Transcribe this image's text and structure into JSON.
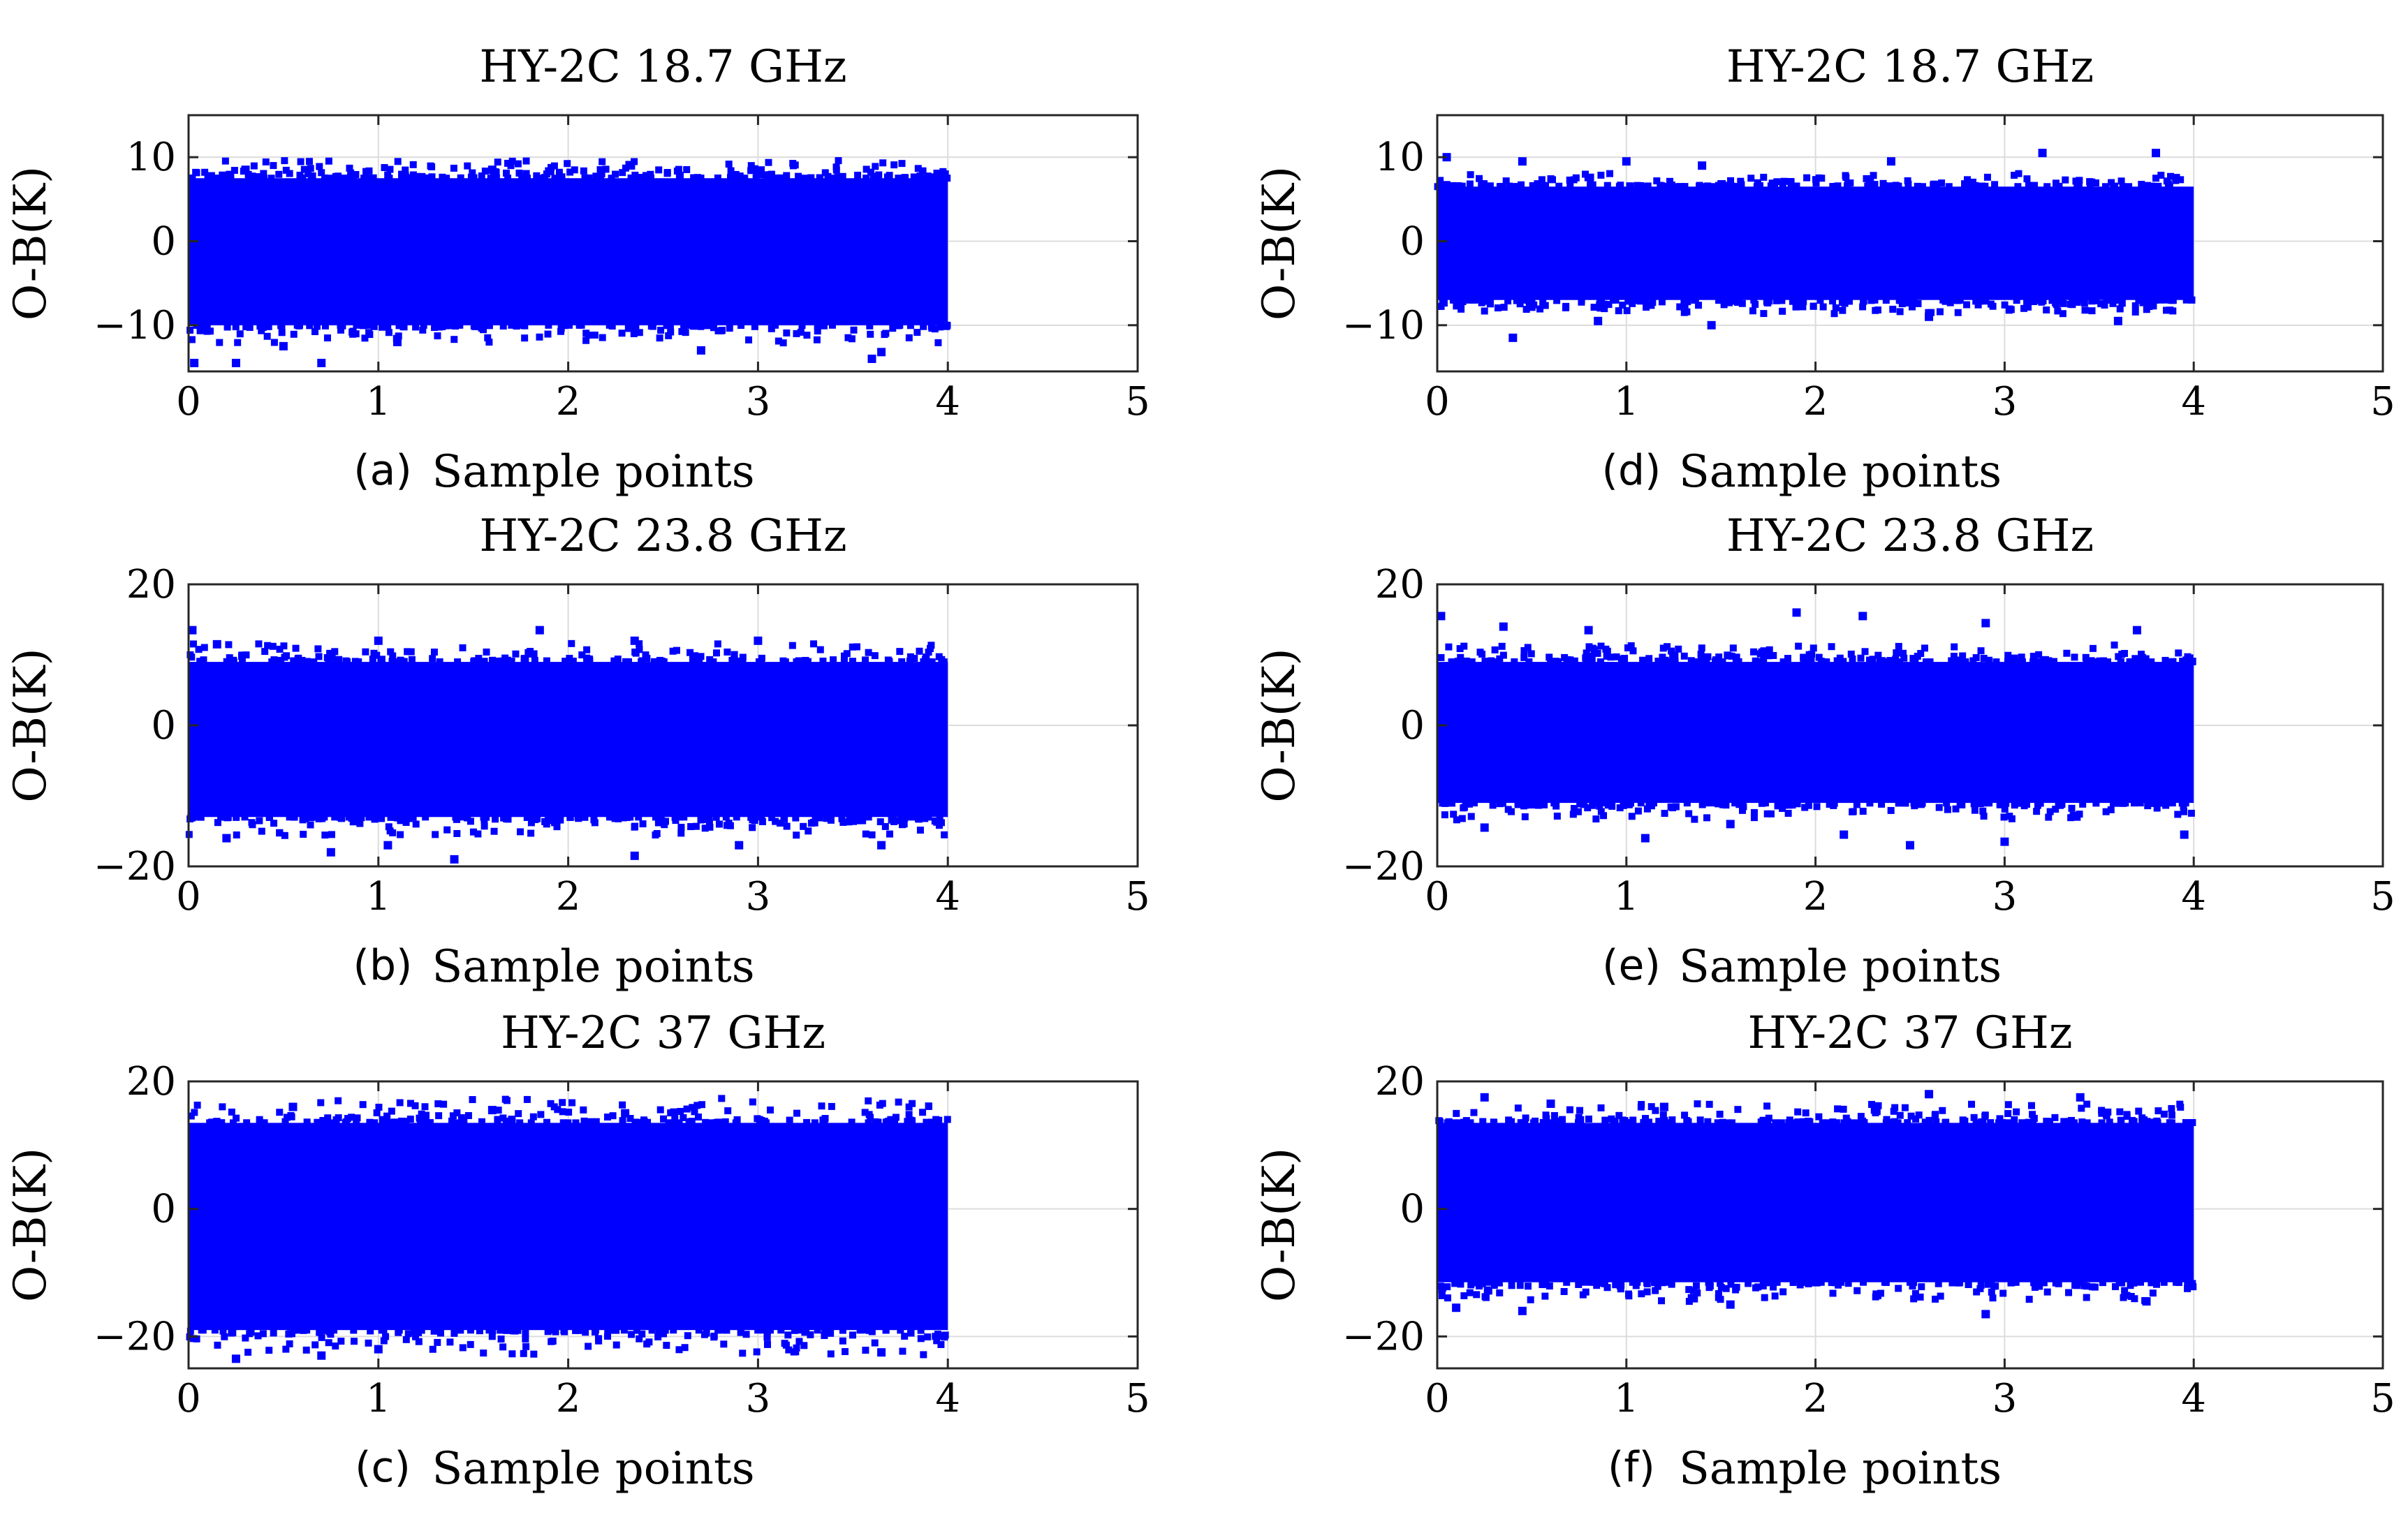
{
  "figure": {
    "background": "#ffffff",
    "marker_color": "#0000ff",
    "grid_color": "#dcdcdc",
    "axis_color": "#262626"
  },
  "chart_data": [
    {
      "id": "a",
      "panel_label": "(a)",
      "type": "scatter",
      "title": "HY-2C 18.7 GHz",
      "xlabel": "Sample points",
      "ylabel": "O-B(K)",
      "xlim": [
        0,
        5
      ],
      "ylim": [
        -15.5,
        15
      ],
      "xticks": [
        0,
        1,
        2,
        3,
        4,
        5
      ],
      "yticks": [
        -10,
        0,
        10
      ],
      "ytick_labels": [
        "−10",
        "0",
        "10"
      ],
      "x_range": [
        0,
        4.0
      ],
      "band": [
        -10,
        7.5
      ],
      "outliers": [
        {
          "x": 0.03,
          "y": -14.5
        },
        {
          "x": 0.25,
          "y": -14.5
        },
        {
          "x": 0.5,
          "y": -12.5
        },
        {
          "x": 0.7,
          "y": -14.5
        },
        {
          "x": 1.1,
          "y": -12.0
        },
        {
          "x": 2.7,
          "y": -13.0
        },
        {
          "x": 3.6,
          "y": -14.0
        },
        {
          "x": 3.65,
          "y": -13.2
        },
        {
          "x": 0.3,
          "y": 8.5
        },
        {
          "x": 1.6,
          "y": 8.5
        },
        {
          "x": 3.0,
          "y": 8.3
        }
      ]
    },
    {
      "id": "b",
      "panel_label": "(b)",
      "type": "scatter",
      "title": "HY-2C 23.8 GHz",
      "xlabel": "Sample points",
      "ylabel": "O-B(K)",
      "xlim": [
        0,
        5
      ],
      "ylim": [
        -20,
        20
      ],
      "xticks": [
        0,
        1,
        2,
        3,
        4,
        5
      ],
      "yticks": [
        -20,
        0,
        20
      ],
      "ytick_labels": [
        "−20",
        "0",
        "20"
      ],
      "x_range": [
        0,
        4.0
      ],
      "band": [
        -13,
        9
      ],
      "outliers": [
        {
          "x": 0.02,
          "y": 13.5
        },
        {
          "x": 0.15,
          "y": 11.5
        },
        {
          "x": 1.0,
          "y": 12.0
        },
        {
          "x": 1.85,
          "y": 13.5
        },
        {
          "x": 2.35,
          "y": 12.0
        },
        {
          "x": 3.0,
          "y": 12.0
        },
        {
          "x": 0.2,
          "y": -16.0
        },
        {
          "x": 0.75,
          "y": -18.0
        },
        {
          "x": 1.05,
          "y": -17.0
        },
        {
          "x": 1.4,
          "y": -19.0
        },
        {
          "x": 2.35,
          "y": -18.5
        },
        {
          "x": 2.9,
          "y": -17.0
        },
        {
          "x": 3.65,
          "y": -17.0
        }
      ]
    },
    {
      "id": "c",
      "panel_label": "(c)",
      "type": "scatter",
      "title": "HY-2C 37 GHz",
      "xlabel": "Sample points",
      "ylabel": "O-B(K)",
      "xlim": [
        0,
        5
      ],
      "ylim": [
        -25,
        20
      ],
      "xticks": [
        0,
        1,
        2,
        3,
        4,
        5
      ],
      "yticks": [
        -20,
        0,
        20
      ],
      "ytick_labels": [
        "−20",
        "0",
        "20"
      ],
      "x_range": [
        0,
        4.0
      ],
      "band": [
        -19,
        13.5
      ],
      "outliers": [
        {
          "x": 0.25,
          "y": -23.5
        },
        {
          "x": 0.7,
          "y": -23.0
        },
        {
          "x": 1.0,
          "y": -22.0
        },
        {
          "x": 3.65,
          "y": -22.5
        },
        {
          "x": 0.55,
          "y": 16.0
        },
        {
          "x": 1.6,
          "y": 15.5
        },
        {
          "x": 2.3,
          "y": 15.0
        }
      ]
    },
    {
      "id": "d",
      "panel_label": "(d)",
      "type": "scatter",
      "title": "HY-2C 18.7 GHz",
      "xlabel": "Sample points",
      "ylabel": "O-B(K)",
      "xlim": [
        0,
        5
      ],
      "ylim": [
        -15.5,
        15
      ],
      "xticks": [
        0,
        1,
        2,
        3,
        4,
        5
      ],
      "yticks": [
        -10,
        0,
        10
      ],
      "ytick_labels": [
        "−10",
        "0",
        "10"
      ],
      "x_range": [
        0,
        4.0
      ],
      "band": [
        -7,
        6.5
      ],
      "outliers": [
        {
          "x": 0.05,
          "y": 10.0
        },
        {
          "x": 0.45,
          "y": 9.5
        },
        {
          "x": 1.0,
          "y": 9.5
        },
        {
          "x": 1.4,
          "y": 9.0
        },
        {
          "x": 2.4,
          "y": 9.5
        },
        {
          "x": 3.2,
          "y": 10.5
        },
        {
          "x": 3.8,
          "y": 10.5
        },
        {
          "x": 0.4,
          "y": -11.5
        },
        {
          "x": 0.85,
          "y": -9.5
        },
        {
          "x": 1.45,
          "y": -10.0
        },
        {
          "x": 2.6,
          "y": -9.0
        },
        {
          "x": 3.6,
          "y": -9.5
        }
      ]
    },
    {
      "id": "e",
      "panel_label": "(e)",
      "type": "scatter",
      "title": "HY-2C 23.8 GHz",
      "xlabel": "Sample points",
      "ylabel": "O-B(K)",
      "xlim": [
        0,
        5
      ],
      "ylim": [
        -20,
        20
      ],
      "xticks": [
        0,
        1,
        2,
        3,
        4,
        5
      ],
      "yticks": [
        -20,
        0,
        20
      ],
      "ytick_labels": [
        "−20",
        "0",
        "20"
      ],
      "x_range": [
        0,
        4.0
      ],
      "band": [
        -11,
        9
      ],
      "outliers": [
        {
          "x": 0.02,
          "y": 15.5
        },
        {
          "x": 0.35,
          "y": 14.0
        },
        {
          "x": 0.8,
          "y": 13.5
        },
        {
          "x": 1.9,
          "y": 16.0
        },
        {
          "x": 2.25,
          "y": 15.5
        },
        {
          "x": 2.9,
          "y": 14.5
        },
        {
          "x": 3.7,
          "y": 13.5
        },
        {
          "x": 0.25,
          "y": -14.5
        },
        {
          "x": 1.1,
          "y": -16.0
        },
        {
          "x": 1.55,
          "y": -14.0
        },
        {
          "x": 2.15,
          "y": -15.5
        },
        {
          "x": 2.5,
          "y": -17.0
        },
        {
          "x": 3.0,
          "y": -16.5
        },
        {
          "x": 3.95,
          "y": -15.5
        }
      ]
    },
    {
      "id": "f",
      "panel_label": "(f)",
      "type": "scatter",
      "title": "HY-2C 37 GHz",
      "xlabel": "Sample points",
      "ylabel": "O-B(K)",
      "xlim": [
        0,
        5
      ],
      "ylim": [
        -25,
        20
      ],
      "xticks": [
        0,
        1,
        2,
        3,
        4,
        5
      ],
      "yticks": [
        -20,
        0,
        20
      ],
      "ytick_labels": [
        "−20",
        "0",
        "20"
      ],
      "x_range": [
        0,
        4.0
      ],
      "band": [
        -11.5,
        13.5
      ],
      "outliers": [
        {
          "x": 0.25,
          "y": 17.5
        },
        {
          "x": 0.6,
          "y": 16.5
        },
        {
          "x": 1.2,
          "y": 16.0
        },
        {
          "x": 2.6,
          "y": 18.0
        },
        {
          "x": 3.4,
          "y": 17.5
        },
        {
          "x": 0.1,
          "y": -15.5
        },
        {
          "x": 0.45,
          "y": -16.0
        },
        {
          "x": 1.55,
          "y": -15.0
        },
        {
          "x": 2.9,
          "y": -16.5
        },
        {
          "x": 3.75,
          "y": -14.5
        }
      ]
    }
  ]
}
